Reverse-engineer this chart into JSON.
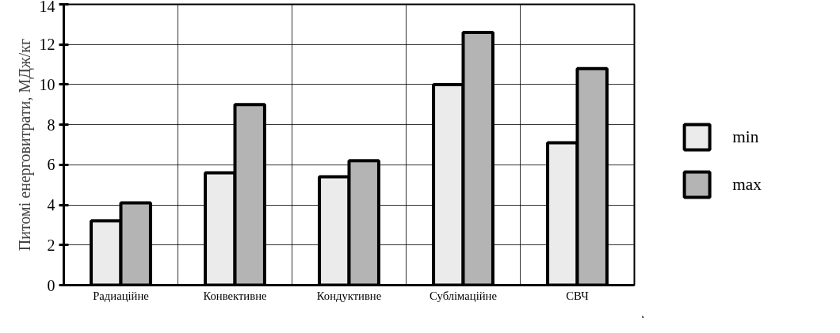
{
  "chart_data": {
    "type": "bar",
    "ylabel": "Питомі енерговитрати, МДж/кг",
    "categories": [
      "Радиаційне",
      "Конвективне",
      "Кондуктивне",
      "Сублімаційне",
      "СВЧ"
    ],
    "series": [
      {
        "name": "min",
        "color": "#ebebeb",
        "values": [
          3.2,
          5.6,
          5.4,
          10.0,
          7.1
        ]
      },
      {
        "name": "max",
        "color": "#b4b4b4",
        "values": [
          4.1,
          9.0,
          6.2,
          12.6,
          10.8
        ]
      }
    ],
    "ylim": [
      0,
      14
    ],
    "yticks": [
      0,
      2,
      4,
      6,
      8,
      10,
      12,
      14
    ],
    "grid": true,
    "legend": "right"
  }
}
